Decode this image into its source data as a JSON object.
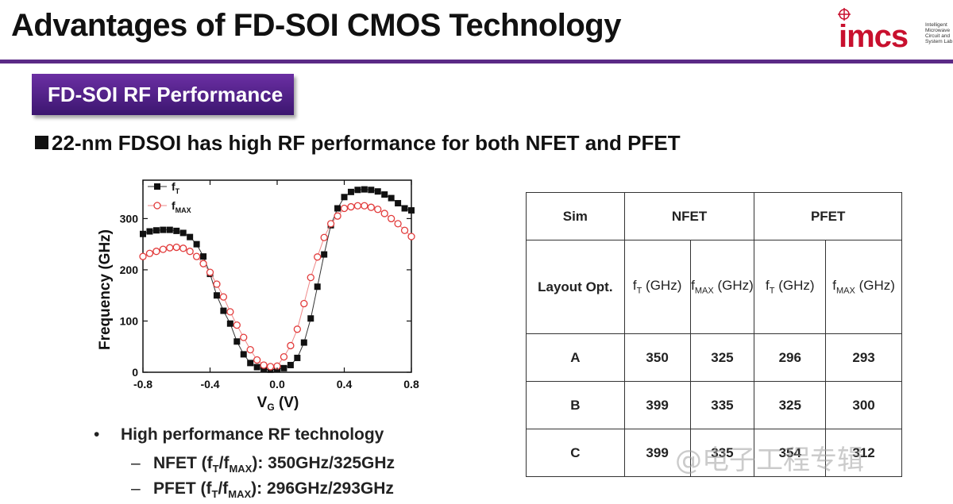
{
  "slide": {
    "title": "Advantages of FD-SOI CMOS Technology",
    "section": "FD-SOI RF Performance",
    "headline": "22-nm FDSOI has high RF performance for both NFET and PFET"
  },
  "logo": {
    "word": "imcs",
    "lines": [
      "Intelligent",
      "Microwave",
      "Circuit and",
      "System Lab"
    ]
  },
  "colors": {
    "rule": "#5b2a86",
    "brand": "#c8102e"
  },
  "bullets": {
    "main": "High performance RF technology",
    "nfet": {
      "prefix": "NFET (f",
      "s1": "T",
      "mid": "/f",
      "s2": "MAX",
      "suffix": "): 350GHz/325GHz"
    },
    "pfet": {
      "prefix": "PFET (f",
      "s1": "T",
      "mid": "/f",
      "s2": "MAX",
      "suffix": "): 296GHz/293GHz"
    }
  },
  "table": {
    "col_sim": "Sim",
    "col_nfet": "NFET",
    "col_pfet": "PFET",
    "row_layout": "Layout Opt.",
    "unit": "(GHz)",
    "ft": "f",
    "ft_sub": "T",
    "fmax": "f",
    "fmax_sub": "MAX",
    "rows": [
      {
        "label": "A",
        "values": [
          "350",
          "325",
          "296",
          "293"
        ]
      },
      {
        "label": "B",
        "values": [
          "399",
          "335",
          "325",
          "300"
        ]
      },
      {
        "label": "C",
        "values": [
          "399",
          "335",
          "354",
          "312"
        ]
      }
    ]
  },
  "watermark": "@电子工程专辑",
  "chart_data": {
    "type": "scatter",
    "xlabel": "V",
    "xlabel_sub": "G",
    "xlabel_unit": " (V)",
    "ylabel": "Frequency (GHz)",
    "xlim": [
      -0.8,
      0.8
    ],
    "ylim": [
      0,
      375
    ],
    "xticks": [
      -0.8,
      -0.4,
      0.0,
      0.4,
      0.8
    ],
    "xtick_labels": [
      "-0.8",
      "-0.4",
      "0.0",
      "0.4",
      "0.8"
    ],
    "yticks": [
      0,
      100,
      200,
      300
    ],
    "ytick_labels": [
      "0",
      "100",
      "200",
      "300"
    ],
    "legend_position": "top-left",
    "series": [
      {
        "name": "f",
        "sub": "T",
        "marker": "filled-square",
        "x": [
          -0.8,
          -0.76,
          -0.72,
          -0.68,
          -0.64,
          -0.6,
          -0.56,
          -0.52,
          -0.48,
          -0.44,
          -0.4,
          -0.36,
          -0.32,
          -0.28,
          -0.24,
          -0.2,
          -0.16,
          -0.12,
          -0.08,
          -0.04,
          0.0,
          0.04,
          0.08,
          0.12,
          0.16,
          0.2,
          0.24,
          0.28,
          0.32,
          0.36,
          0.4,
          0.44,
          0.48,
          0.52,
          0.56,
          0.6,
          0.64,
          0.68,
          0.72,
          0.76,
          0.8
        ],
        "values": [
          270,
          275,
          277,
          278,
          278,
          276,
          272,
          264,
          250,
          226,
          192,
          150,
          120,
          95,
          60,
          35,
          18,
          10,
          6,
          5,
          6,
          8,
          14,
          28,
          58,
          105,
          167,
          230,
          287,
          320,
          342,
          352,
          356,
          357,
          356,
          353,
          347,
          340,
          330,
          320,
          316
        ]
      },
      {
        "name": "f",
        "sub": "MAX",
        "marker": "open-circle",
        "x": [
          -0.8,
          -0.76,
          -0.72,
          -0.68,
          -0.64,
          -0.6,
          -0.56,
          -0.52,
          -0.48,
          -0.44,
          -0.4,
          -0.36,
          -0.32,
          -0.28,
          -0.24,
          -0.2,
          -0.16,
          -0.12,
          -0.08,
          -0.04,
          0.0,
          0.04,
          0.08,
          0.12,
          0.16,
          0.2,
          0.24,
          0.28,
          0.32,
          0.36,
          0.4,
          0.44,
          0.48,
          0.52,
          0.56,
          0.6,
          0.64,
          0.68,
          0.72,
          0.76,
          0.8
        ],
        "values": [
          226,
          232,
          236,
          240,
          243,
          244,
          242,
          236,
          226,
          212,
          195,
          172,
          147,
          118,
          92,
          68,
          44,
          24,
          14,
          11,
          12,
          30,
          52,
          84,
          134,
          185,
          225,
          263,
          290,
          305,
          320,
          323,
          325,
          325,
          322,
          318,
          310,
          300,
          290,
          277,
          265
        ]
      }
    ]
  }
}
